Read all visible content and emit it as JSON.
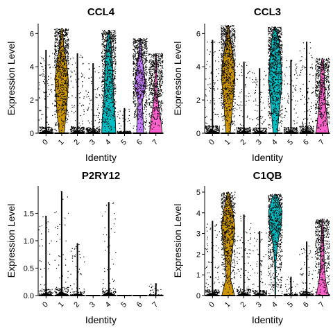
{
  "chart_data": {
    "type": "violin",
    "categories": [
      "0",
      "1",
      "2",
      "3",
      "4",
      "5",
      "6",
      "7"
    ],
    "colors": [
      "#F8766D",
      "#CD9600",
      "#7CAE00",
      "#00BE67",
      "#00BFC4",
      "#00A9FF",
      "#C77CFF",
      "#FF61CC"
    ],
    "xlabel": "Identity",
    "ylabel": "Expression Level",
    "panels": [
      {
        "title": "CCL4",
        "ylim": [
          0,
          6.6
        ],
        "yticks": [
          0,
          2,
          4,
          6
        ],
        "max_values": [
          5.0,
          6.3,
          4.8,
          4.2,
          6.2,
          1.5,
          5.7,
          4.8
        ],
        "median_values": [
          0,
          4.3,
          0,
          0,
          0.2,
          0,
          0,
          0
        ]
      },
      {
        "title": "CCL3",
        "ylim": [
          0,
          6.6
        ],
        "yticks": [
          0,
          2,
          4,
          6
        ],
        "max_values": [
          5.6,
          6.5,
          4.3,
          3.9,
          6.4,
          4.4,
          5.5,
          4.5
        ],
        "median_values": [
          0,
          4.0,
          0,
          0,
          4.0,
          0,
          0,
          0.2
        ]
      },
      {
        "title": "P2RY12",
        "ylim": [
          0,
          2.0
        ],
        "yticks": [
          0,
          0.5,
          1.0,
          1.5
        ],
        "max_values": [
          1.45,
          1.9,
          0.95,
          0,
          1.7,
          0,
          0,
          0.22
        ],
        "median_values": [
          0,
          0,
          0,
          0,
          0,
          0,
          0,
          0
        ]
      },
      {
        "title": "C1QB",
        "ylim": [
          0,
          5.3
        ],
        "yticks": [
          0,
          1,
          2,
          3,
          4,
          5
        ],
        "max_values": [
          3.6,
          5.0,
          3.9,
          3.1,
          4.9,
          0.9,
          2.6,
          3.7
        ],
        "median_values": [
          0,
          3.6,
          0,
          0,
          4.2,
          0,
          0,
          0
        ]
      }
    ]
  }
}
